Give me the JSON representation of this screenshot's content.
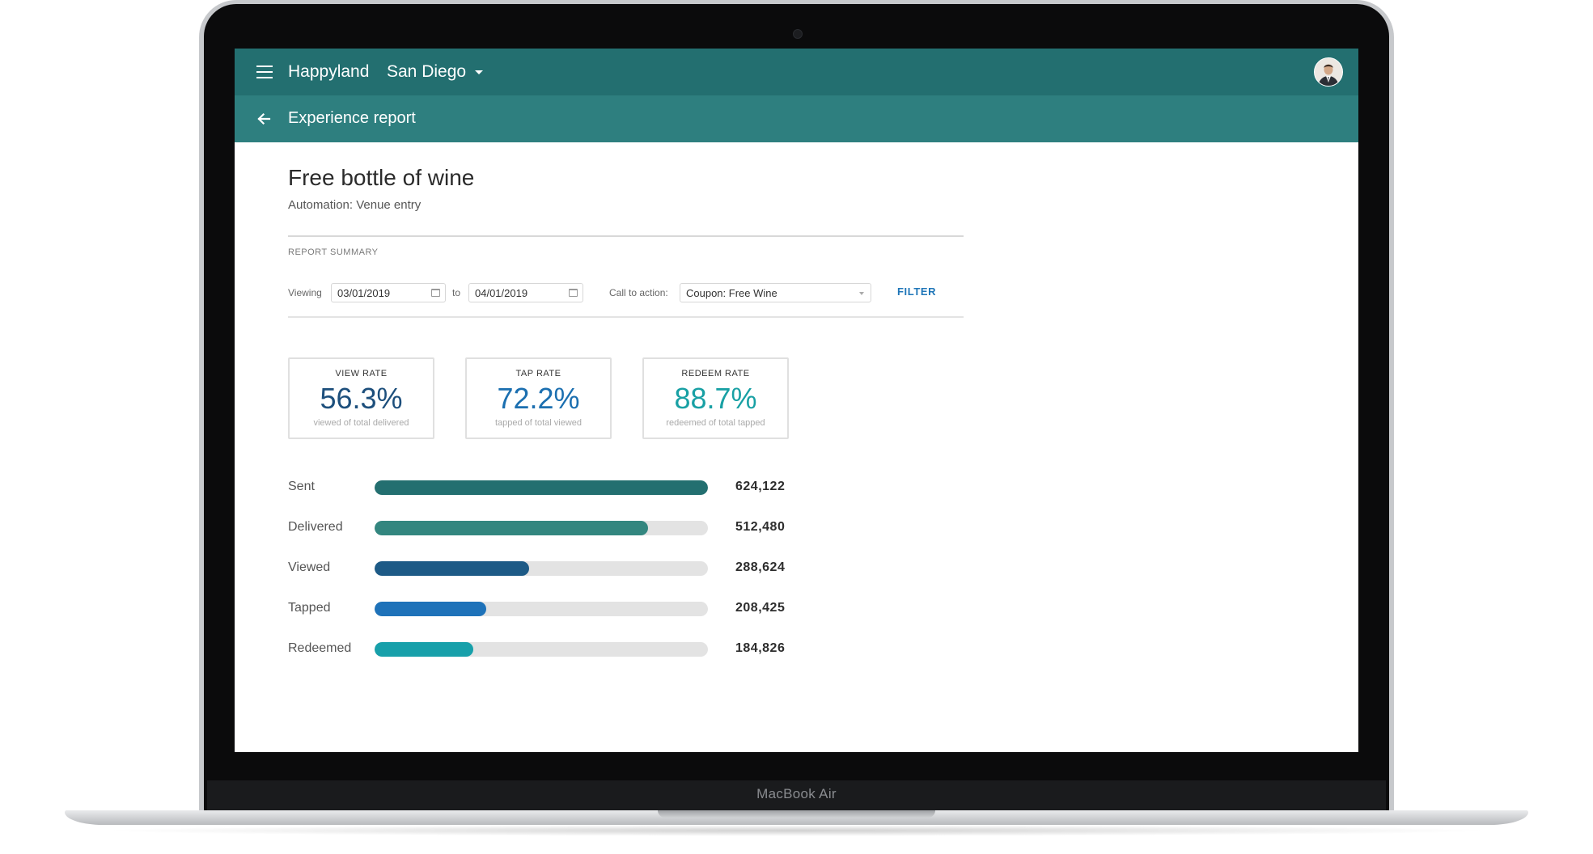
{
  "device": {
    "brand_label": "MacBook Air"
  },
  "appbar": {
    "menu_icon": "hamburger-menu-icon",
    "app_name": "Happyland",
    "location": "San Diego",
    "avatar_icon": "user-avatar"
  },
  "subbar": {
    "back_icon": "arrow-left-icon",
    "title": "Experience report"
  },
  "page": {
    "title": "Free bottle of wine",
    "subtitle": "Automation: Venue entry"
  },
  "summary": {
    "section_label": "REPORT SUMMARY",
    "viewing_label": "Viewing",
    "from_date": "03/01/2019",
    "to_label": "to",
    "to_date": "04/01/2019",
    "cta_label": "Call to action:",
    "cta_value": "Coupon: Free Wine",
    "filter_label": "FILTER"
  },
  "stats": [
    {
      "label": "VIEW RATE",
      "value": "56.3%",
      "caption": "viewed of total delivered",
      "color": "#1d4f7c"
    },
    {
      "label": "TAP RATE",
      "value": "72.2%",
      "caption": "tapped of total viewed",
      "color": "#1b6fb0"
    },
    {
      "label": "REDEEM RATE",
      "value": "88.7%",
      "caption": "redeemed of total tapped",
      "color": "#18a0a4"
    }
  ],
  "funnel": [
    {
      "label": "Sent",
      "value": "624,122",
      "count": 624122,
      "color": "#236f70"
    },
    {
      "label": "Delivered",
      "value": "512,480",
      "count": 512480,
      "color": "#33867f"
    },
    {
      "label": "Viewed",
      "value": "288,624",
      "count": 288624,
      "color": "#1d5a86"
    },
    {
      "label": "Tapped",
      "value": "208,425",
      "count": 208425,
      "color": "#1e72b9"
    },
    {
      "label": "Redeemed",
      "value": "184,826",
      "count": 184826,
      "color": "#17a0aa"
    }
  ]
}
